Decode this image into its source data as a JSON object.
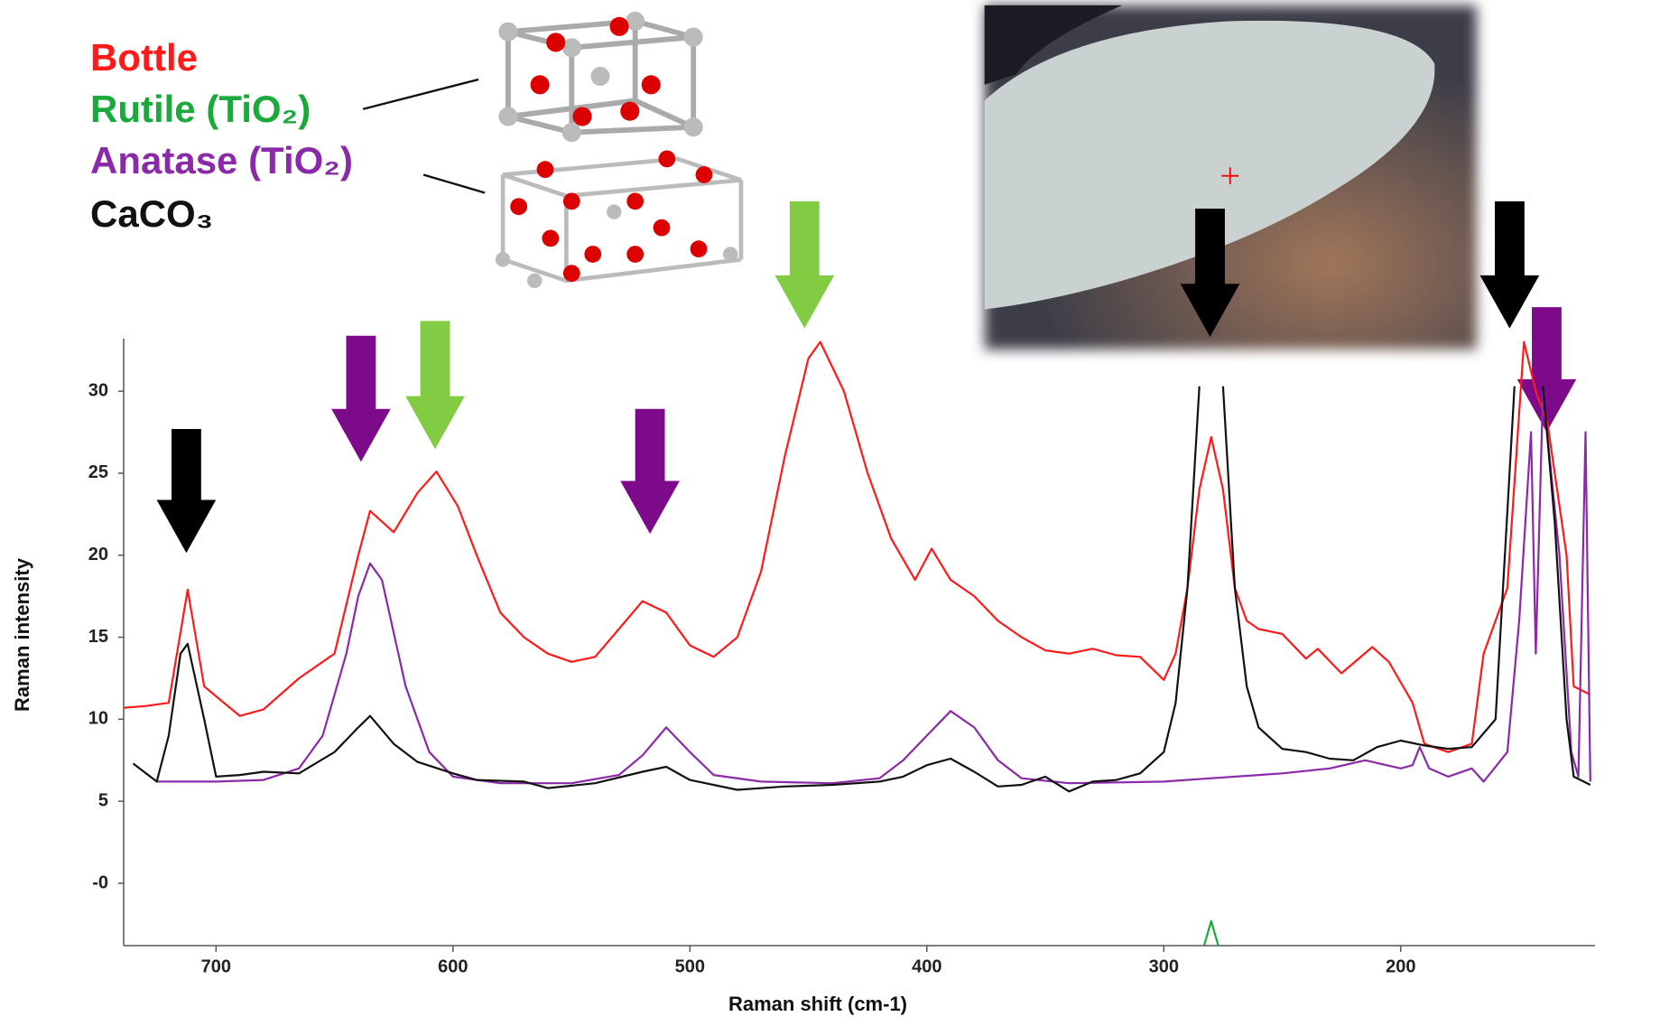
{
  "chart_data": {
    "type": "line",
    "x_label": "Raman shift (cm-1)",
    "y_label": "Raman intensity",
    "xlim": [
      739,
      118
    ],
    "ylim": [
      -3.8,
      33.2
    ],
    "xticks": [
      700,
      600,
      500,
      400,
      300,
      200
    ],
    "yticks": [
      30,
      25,
      20,
      15,
      10,
      5,
      {
        "value": 0,
        "label": "-0"
      }
    ],
    "series": [
      {
        "name": "Bottle",
        "color": "#ff1a1a",
        "x": [
          739,
          730,
          720,
          712,
          705,
          690,
          680,
          665,
          650,
          640,
          635,
          625,
          615,
          607,
          598,
          590,
          580,
          570,
          560,
          550,
          540,
          530,
          520,
          510,
          500,
          490,
          480,
          470,
          460,
          450,
          445,
          435,
          425,
          415,
          405,
          398,
          390,
          380,
          370,
          360,
          350,
          340,
          330,
          320,
          310,
          300,
          295,
          290,
          285,
          280,
          275,
          270,
          265,
          260,
          250,
          240,
          235,
          225,
          212,
          205,
          195,
          190,
          180,
          170,
          165,
          155,
          148,
          143,
          138,
          130,
          127,
          120
        ],
        "values": [
          10.7,
          10.8,
          11,
          17.9,
          12,
          10.2,
          10.6,
          12.5,
          14,
          20,
          22.7,
          21.4,
          23.8,
          25.1,
          23,
          20,
          16.5,
          15,
          14,
          13.5,
          13.8,
          15.5,
          17.2,
          16.5,
          14.5,
          13.8,
          15,
          19,
          26,
          32,
          33,
          30,
          25,
          21,
          18.5,
          20.4,
          18.5,
          17.5,
          16,
          15,
          14.2,
          14,
          14.3,
          13.9,
          13.8,
          12.4,
          14,
          18,
          24,
          27.2,
          24,
          18,
          16,
          15.5,
          15.2,
          13.7,
          14.3,
          12.8,
          14.4,
          13.5,
          11,
          8.5,
          8,
          8.5,
          14,
          18,
          33,
          30,
          28,
          20,
          12,
          11.5
        ]
      },
      {
        "name": "Rutile (TiO₂)",
        "color": "#1aaa3c",
        "x": [
          283,
          280,
          277
        ],
        "values": [
          -3.8,
          -2.3,
          -3.8
        ]
      },
      {
        "name": "Anatase (TiO₂)",
        "color": "#8a2aa8",
        "x": [
          725,
          700,
          680,
          665,
          655,
          645,
          640,
          635,
          630,
          620,
          610,
          600,
          580,
          550,
          530,
          520,
          510,
          500,
          490,
          470,
          440,
          420,
          410,
          400,
          390,
          380,
          370,
          360,
          340,
          300,
          280,
          250,
          230,
          215,
          200,
          195,
          192,
          188,
          180,
          170,
          165,
          155,
          150,
          145,
          143,
          140,
          133,
          128,
          125,
          122,
          120
        ],
        "values": [
          6.2,
          6.2,
          6.3,
          7,
          9,
          14,
          17.5,
          19.5,
          18.5,
          12,
          8,
          6.5,
          6.1,
          6.1,
          6.6,
          7.8,
          9.5,
          8,
          6.6,
          6.2,
          6.1,
          6.4,
          7.5,
          9,
          10.5,
          9.5,
          7.5,
          6.4,
          6.1,
          6.2,
          6.4,
          6.7,
          7,
          7.5,
          7,
          7.2,
          8.3,
          7,
          6.5,
          7,
          6.2,
          8,
          16,
          27.5,
          14,
          30,
          20,
          8,
          6.5,
          27.5,
          6.2
        ]
      },
      {
        "name": "CaCO₃",
        "color": "#111111",
        "x": [
          735,
          725,
          720,
          715,
          712,
          705,
          700,
          690,
          680,
          665,
          650,
          640,
          635,
          625,
          615,
          600,
          590,
          570,
          560,
          540,
          520,
          510,
          500,
          480,
          460,
          440,
          420,
          410,
          400,
          390,
          380,
          370,
          360,
          350,
          340,
          330,
          320,
          310,
          300,
          295,
          290,
          285,
          280,
          275,
          270,
          265,
          260,
          250,
          240,
          230,
          220,
          210,
          200,
          190,
          180,
          170,
          160,
          152,
          148,
          140,
          135,
          130,
          127,
          120
        ],
        "values": [
          7.3,
          6.2,
          9,
          14,
          14.6,
          10,
          6.5,
          6.6,
          6.8,
          6.7,
          8,
          9.5,
          10.2,
          8.5,
          7.4,
          6.7,
          6.3,
          6.2,
          5.8,
          6.1,
          6.8,
          7.1,
          6.3,
          5.7,
          5.9,
          6,
          6.2,
          6.5,
          7.2,
          7.6,
          6.8,
          5.9,
          6,
          6.5,
          5.6,
          6.2,
          6.3,
          6.7,
          8,
          11,
          18,
          30.3,
          null,
          30.3,
          18,
          12,
          9.5,
          8.2,
          8,
          7.6,
          7.5,
          8.3,
          8.7,
          8.4,
          8.2,
          8.3,
          10,
          30.3,
          null,
          30.3,
          22,
          10,
          6.5,
          6
        ]
      }
    ]
  }
}
